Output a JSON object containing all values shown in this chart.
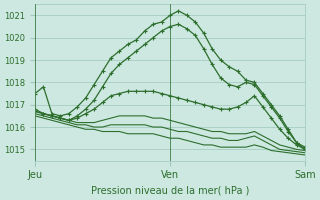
{
  "xlabel": "Pression niveau de la mer( hPa )",
  "bg_color": "#cce8e0",
  "grid_color": "#a0c8bc",
  "line_color": "#2d6e2d",
  "text_color": "#2d6e2d",
  "ylim": [
    1014.5,
    1021.5
  ],
  "xtick_labels": [
    "Jeu",
    "Ven",
    "Sam"
  ],
  "xtick_positions": [
    0,
    16,
    32
  ],
  "ytick_values": [
    1015,
    1016,
    1017,
    1018,
    1019,
    1020,
    1021
  ],
  "total_points": 33,
  "lines_with_markers": [
    [
      1017.5,
      1017.8,
      1016.6,
      1016.5,
      1016.6,
      1016.9,
      1017.3,
      1017.9,
      1018.5,
      1019.1,
      1019.4,
      1019.7,
      1019.9,
      1020.3,
      1020.6,
      1020.7,
      1021.0,
      1021.2,
      1021.0,
      1020.7,
      1020.2,
      1019.5,
      1019.0,
      1018.7,
      1018.5,
      1018.1,
      1018.0,
      1017.5,
      1017.0,
      1016.5,
      1015.9,
      1015.3,
      1015.0
    ],
    [
      1016.8,
      1016.6,
      1016.5,
      1016.4,
      1016.3,
      1016.5,
      1016.8,
      1017.2,
      1017.8,
      1018.4,
      1018.8,
      1019.1,
      1019.4,
      1019.7,
      1020.0,
      1020.3,
      1020.5,
      1020.6,
      1020.4,
      1020.1,
      1019.5,
      1018.8,
      1018.2,
      1017.9,
      1017.8,
      1018.0,
      1017.9,
      1017.4,
      1016.9,
      1016.4,
      1015.8,
      1015.3,
      1015.1
    ],
    [
      1016.7,
      1016.6,
      1016.5,
      1016.4,
      1016.3,
      1016.4,
      1016.6,
      1016.8,
      1017.1,
      1017.4,
      1017.5,
      1017.6,
      1017.6,
      1017.6,
      1017.6,
      1017.5,
      1017.4,
      1017.3,
      1017.2,
      1017.1,
      1017.0,
      1016.9,
      1016.8,
      1016.8,
      1016.9,
      1017.1,
      1017.4,
      1016.9,
      1016.4,
      1015.9,
      1015.5,
      1015.2,
      1015.0
    ]
  ],
  "lines_flat": [
    [
      1016.7,
      1016.6,
      1016.5,
      1016.4,
      1016.3,
      1016.2,
      1016.2,
      1016.2,
      1016.3,
      1016.4,
      1016.5,
      1016.5,
      1016.5,
      1016.5,
      1016.4,
      1016.4,
      1016.3,
      1016.2,
      1016.1,
      1016.0,
      1015.9,
      1015.8,
      1015.8,
      1015.7,
      1015.7,
      1015.7,
      1015.8,
      1015.6,
      1015.4,
      1015.2,
      1015.1,
      1015.0,
      1014.95
    ],
    [
      1016.6,
      1016.5,
      1016.4,
      1016.3,
      1016.2,
      1016.1,
      1016.1,
      1016.0,
      1016.0,
      1016.1,
      1016.1,
      1016.1,
      1016.1,
      1016.1,
      1016.0,
      1016.0,
      1015.9,
      1015.8,
      1015.8,
      1015.7,
      1015.6,
      1015.5,
      1015.5,
      1015.4,
      1015.4,
      1015.5,
      1015.6,
      1015.4,
      1015.2,
      1015.0,
      1014.95,
      1014.9,
      1014.85
    ],
    [
      1016.5,
      1016.4,
      1016.3,
      1016.2,
      1016.1,
      1016.0,
      1015.9,
      1015.9,
      1015.8,
      1015.8,
      1015.8,
      1015.7,
      1015.7,
      1015.7,
      1015.7,
      1015.6,
      1015.5,
      1015.5,
      1015.4,
      1015.3,
      1015.2,
      1015.2,
      1015.1,
      1015.1,
      1015.1,
      1015.1,
      1015.2,
      1015.1,
      1014.95,
      1014.9,
      1014.85,
      1014.8,
      1014.75
    ]
  ]
}
